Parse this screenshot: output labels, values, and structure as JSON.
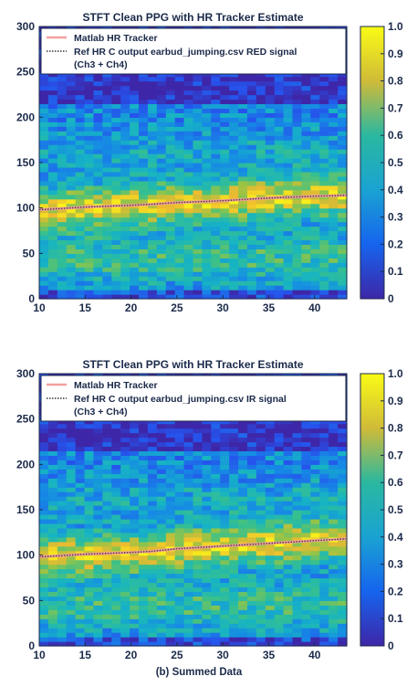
{
  "caption": "(b) Summed Data",
  "chart_data": [
    {
      "type": "heatmap",
      "title": "STFT Clean PPG with HR Tracker Estimate",
      "xlim": [
        10,
        43.5
      ],
      "ylim": [
        0,
        300
      ],
      "x_ticks": [
        10,
        15,
        20,
        25,
        30,
        35,
        40
      ],
      "y_ticks": [
        0,
        50,
        100,
        150,
        200,
        250,
        300
      ],
      "colorbar": {
        "range": [
          0,
          1
        ],
        "ticks": [
          "0",
          "0.1",
          "0.2",
          "0.3",
          "0.4",
          "0.5",
          "0.6",
          "0.7",
          "0.8",
          "0.9",
          "1.0"
        ]
      },
      "legend": {
        "placement": "top-left",
        "entries": [
          {
            "name": "Matlab HR Tracker",
            "color": "#f2a0a0",
            "style": "solid"
          },
          {
            "name": "Ref HR C output earbud_jumping.csv RED signal",
            "name_line2": "(Ch3 + Ch4)",
            "color": "#333333",
            "style": "dotted"
          }
        ]
      },
      "series": [
        {
          "name": "Matlab HR Tracker",
          "x": [
            10,
            15,
            20,
            22,
            25,
            30,
            35,
            40,
            43.5
          ],
          "y": [
            98,
            101,
            103,
            104,
            106,
            108,
            111,
            113,
            114
          ]
        },
        {
          "name": "Ref HR C output earbud_jumping.csv RED signal",
          "x": [
            10,
            15,
            20,
            22,
            25,
            30,
            35,
            40,
            43.5
          ],
          "y": [
            98,
            101,
            103,
            104,
            106,
            108,
            111,
            113,
            114
          ]
        }
      ]
    },
    {
      "type": "heatmap",
      "title": "STFT Clean PPG with HR Tracker Estimate",
      "xlim": [
        10,
        43.5
      ],
      "ylim": [
        0,
        300
      ],
      "x_ticks": [
        10,
        15,
        20,
        25,
        30,
        35,
        40
      ],
      "y_ticks": [
        0,
        50,
        100,
        150,
        200,
        250,
        300
      ],
      "colorbar": {
        "range": [
          0,
          1
        ],
        "ticks": [
          "0",
          "0.1",
          "0.2",
          "0.3",
          "0.4",
          "0.5",
          "0.6",
          "0.7",
          "0.8",
          "0.9",
          "1.0"
        ]
      },
      "legend": {
        "placement": "top-left",
        "entries": [
          {
            "name": "Matlab HR Tracker",
            "color": "#f2a0a0",
            "style": "solid"
          },
          {
            "name": "Ref HR C output earbud_jumping.csv IR signal",
            "name_line2": "(Ch3 + Ch4)",
            "color": "#333333",
            "style": "dotted"
          }
        ]
      },
      "series": [
        {
          "name": "Matlab HR Tracker",
          "x": [
            10,
            15,
            20,
            22,
            25,
            30,
            35,
            40,
            43.5
          ],
          "y": [
            98,
            101,
            103,
            104,
            107,
            110,
            113,
            116,
            118
          ]
        },
        {
          "name": "Ref HR C output earbud_jumping.csv IR signal",
          "x": [
            10,
            15,
            20,
            22,
            25,
            30,
            35,
            40,
            43.5
          ],
          "y": [
            98,
            101,
            103,
            104,
            107,
            110,
            113,
            116,
            118
          ]
        }
      ]
    }
  ]
}
